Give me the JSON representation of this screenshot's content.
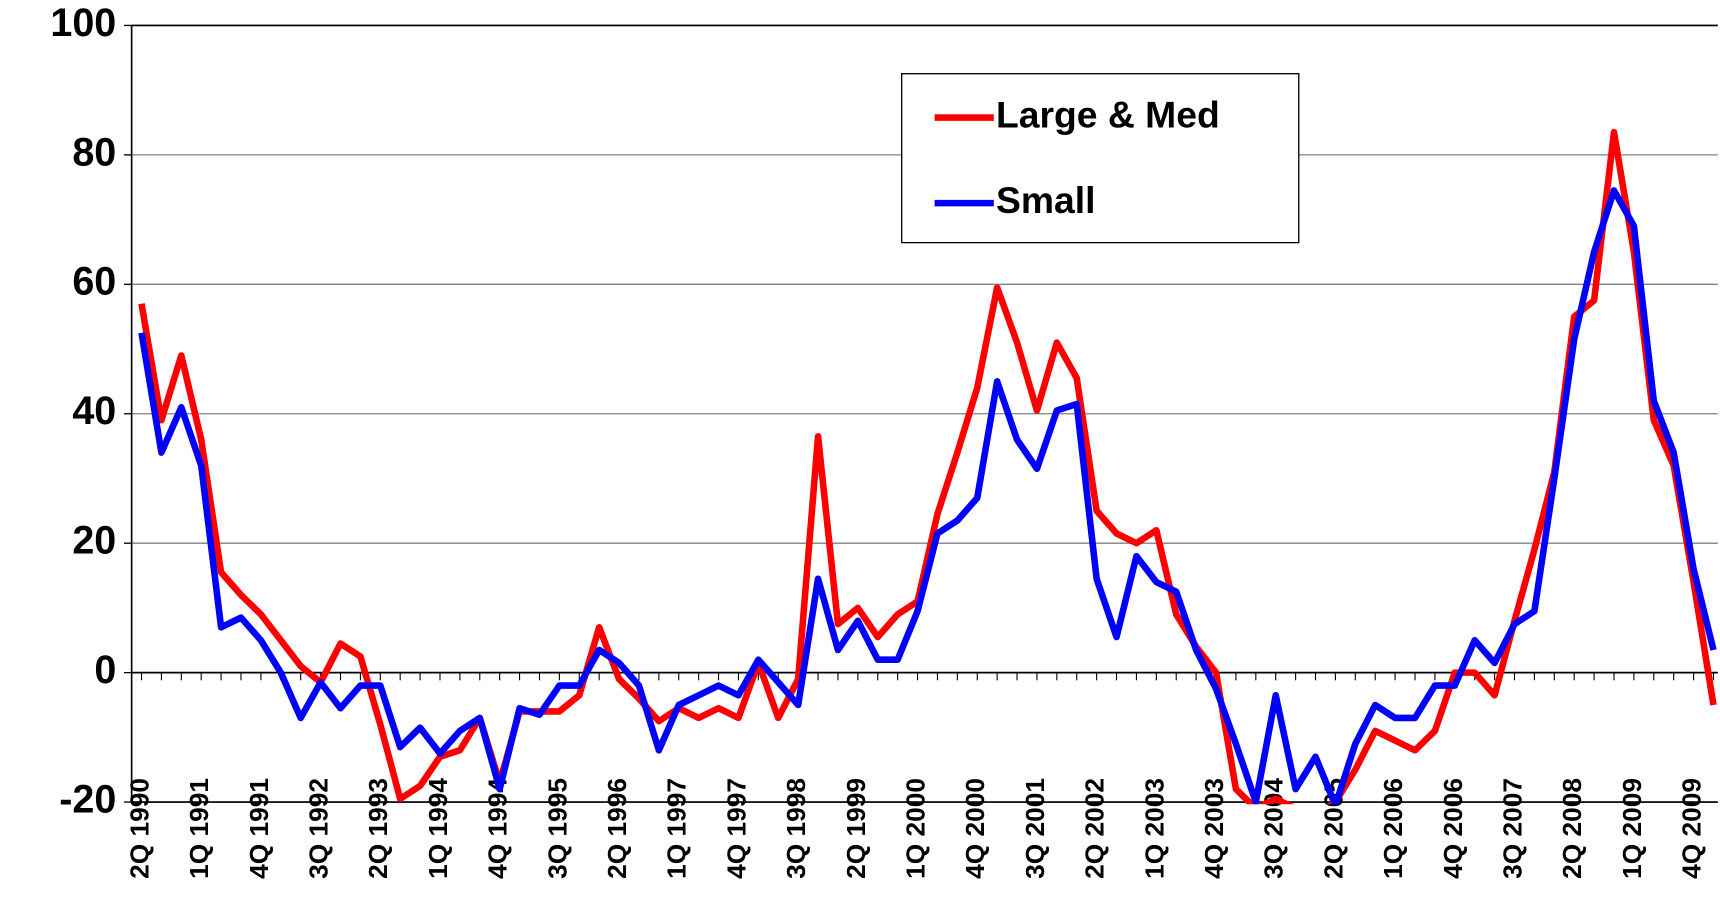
{
  "chart_data": {
    "type": "line",
    "categories": [
      "2Q 1990",
      null,
      null,
      "1Q 1991",
      null,
      null,
      "4Q 1991",
      null,
      null,
      "3Q 1992",
      null,
      null,
      "2Q 1993",
      null,
      null,
      "1Q 1994",
      null,
      null,
      "4Q 1994",
      null,
      null,
      "3Q 1995",
      null,
      null,
      "2Q 1996",
      null,
      null,
      "1Q 1997",
      null,
      null,
      "4Q 1997",
      null,
      null,
      "3Q 1998",
      null,
      null,
      "2Q 1999",
      null,
      null,
      "1Q 2000",
      null,
      null,
      "4Q 2000",
      null,
      null,
      "3Q 2001",
      null,
      null,
      "2Q 2002",
      null,
      null,
      "1Q 2003",
      null,
      null,
      "4Q 2003",
      null,
      null,
      "3Q 2004",
      null,
      null,
      "2Q 2005",
      null,
      null,
      "1Q 2006",
      null,
      null,
      "4Q 2006",
      null,
      null,
      "3Q 2007",
      null,
      null,
      "2Q 2008",
      null,
      null,
      "1Q 2009",
      null,
      null,
      "4Q 2009",
      null
    ],
    "series": [
      {
        "name": "Large & Med",
        "color": "#ff0000",
        "values": [
          57,
          39,
          49,
          36,
          15.5,
          12,
          9,
          5,
          1,
          -1.5,
          4.5,
          2.5,
          -8,
          -19.5,
          -17.5,
          -13,
          -12,
          -7,
          -17,
          -6,
          -6,
          -6,
          -3.5,
          7,
          -1,
          -4,
          -7.5,
          -5.5,
          -7,
          -5.5,
          -7,
          1.5,
          -7,
          -1,
          36.5,
          7.5,
          10,
          5.5,
          9,
          11,
          24.5,
          34,
          44,
          59.5,
          51,
          40.5,
          51,
          45.5,
          25,
          21.5,
          20,
          22,
          9,
          4,
          0,
          -18,
          -21,
          -19.5,
          -21,
          -22,
          -20,
          -15,
          -9,
          -10.5,
          -12,
          -9,
          0,
          0,
          -3.5,
          8,
          19,
          31,
          55,
          57.5,
          83.5,
          65,
          39,
          32,
          14,
          -5
        ]
      },
      {
        "name": "Small",
        "color": "#0000ff",
        "values": [
          52.5,
          34,
          41,
          32,
          7,
          8.5,
          5,
          0,
          -7,
          -1.5,
          -5.5,
          -2,
          -2,
          -11.5,
          -8.5,
          -12.5,
          -9,
          -7,
          -18,
          -5.5,
          -6.5,
          -2,
          -2,
          3.5,
          1.5,
          -2,
          -12,
          -5,
          -3.5,
          -2,
          -3.5,
          2,
          -1.5,
          -5,
          14.5,
          3.5,
          8,
          2,
          2,
          9.5,
          21.5,
          23.5,
          27,
          45,
          36,
          31.5,
          40.5,
          41.5,
          14.5,
          5.5,
          18,
          14,
          12.5,
          3.5,
          -2.5,
          -11,
          -20,
          -3.5,
          -18,
          -13,
          -20.5,
          -11,
          -5,
          -7,
          -7,
          -2,
          -2,
          5,
          1.5,
          7.5,
          9.5,
          30,
          51.5,
          65,
          74.5,
          69,
          42,
          34,
          16,
          3.5
        ]
      }
    ],
    "ylim": [
      -20,
      100
    ],
    "yticks": [
      -20,
      0,
      20,
      40,
      60,
      80,
      100
    ],
    "grid": true,
    "legend": "top"
  }
}
